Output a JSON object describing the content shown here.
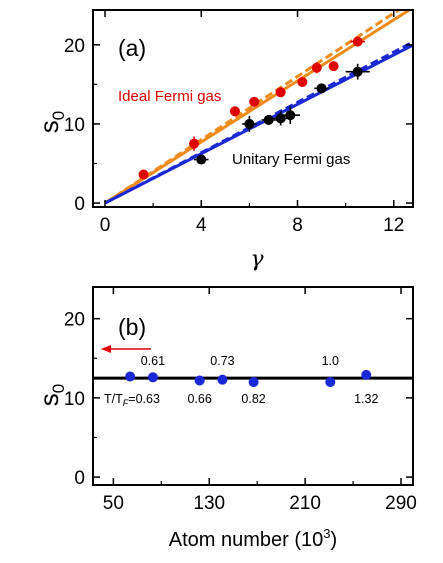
{
  "chart_data": [
    {
      "type": "scatter",
      "panel_label": "(a)",
      "xlabel": "γ",
      "ylabel": "s",
      "ylabel_sub": "0",
      "xlim": [
        -0.5,
        12.8
      ],
      "ylim": [
        -0.5,
        24.4
      ],
      "xticks": [
        0,
        4,
        8,
        12
      ],
      "yticks": [
        0,
        10,
        20
      ],
      "series": [
        {
          "name": "Ideal Fermi gas",
          "color": "#e00000",
          "marker": "filled-circle",
          "points": [
            {
              "x": 1.6,
              "y": 3.6,
              "xerr": 0.2,
              "yerr": 0.4
            },
            {
              "x": 3.7,
              "y": 7.5,
              "xerr": 0.2,
              "yerr": 0.9
            },
            {
              "x": 5.4,
              "y": 11.6,
              "xerr": 0.2,
              "yerr": 0.4
            },
            {
              "x": 6.2,
              "y": 12.8,
              "xerr": 0.2,
              "yerr": 0.4
            },
            {
              "x": 7.3,
              "y": 14.0,
              "xerr": 0.2,
              "yerr": 0.6
            },
            {
              "x": 8.2,
              "y": 15.3,
              "xerr": 0.2,
              "yerr": 0.6
            },
            {
              "x": 8.8,
              "y": 17.1,
              "xerr": 0.2,
              "yerr": 0.7
            },
            {
              "x": 9.5,
              "y": 17.3,
              "xerr": 0.2,
              "yerr": 0.6
            },
            {
              "x": 10.5,
              "y": 20.4,
              "xerr": 0.3,
              "yerr": 0.4
            }
          ]
        },
        {
          "name": "Unitary Fermi gas",
          "color": "#000000",
          "marker": "filled-circle",
          "points": [
            {
              "x": 4.0,
              "y": 5.5,
              "xerr": 0.3,
              "yerr": 0.5
            },
            {
              "x": 6.0,
              "y": 10.0,
              "xerr": 0.3,
              "yerr": 1.0
            },
            {
              "x": 6.8,
              "y": 10.5,
              "xerr": 0.3,
              "yerr": 0.5
            },
            {
              "x": 7.3,
              "y": 10.7,
              "xerr": 0.3,
              "yerr": 0.9
            },
            {
              "x": 7.7,
              "y": 11.1,
              "xerr": 0.4,
              "yerr": 1.1
            },
            {
              "x": 9.0,
              "y": 14.5,
              "xerr": 0.3,
              "yerr": 0.6
            },
            {
              "x": 10.5,
              "y": 16.6,
              "xerr": 0.5,
              "yerr": 1.0
            }
          ]
        }
      ],
      "fit_lines": [
        {
          "color": "#f08a1a",
          "style": "solid",
          "slope": 1.93
        },
        {
          "color": "#f08a1a",
          "style": "dashed",
          "slope": 2.0
        },
        {
          "color": "#1a28d6",
          "style": "solid",
          "slope": 1.56
        },
        {
          "color": "#1a28d6",
          "style": "dashed",
          "slope": 1.59
        }
      ],
      "annotations": {
        "ideal": "Ideal Fermi gas",
        "unitary": "Unitary Fermi gas"
      }
    },
    {
      "type": "scatter",
      "panel_label": "(b)",
      "xlabel": "Atom number (10",
      "xlabel_sup": "3",
      "xlabel_end": ")",
      "ylabel": "s",
      "ylabel_sub": "0",
      "xlim": [
        33,
        300
      ],
      "ylim": [
        -1,
        24
      ],
      "xticks": [
        50,
        130,
        210,
        290
      ],
      "yticks": [
        0,
        10,
        20
      ],
      "hline": {
        "y": 12.5,
        "color": "#000000"
      },
      "series": [
        {
          "name": "",
          "color": "#1a28d6",
          "marker": "filled-circle",
          "points": [
            {
              "x": 64,
              "y": 12.7,
              "yerr": 0.4
            },
            {
              "x": 83,
              "y": 12.6,
              "yerr": 0.6
            },
            {
              "x": 122,
              "y": 12.2,
              "yerr": 0.4
            },
            {
              "x": 141,
              "y": 12.3,
              "yerr": 0.4
            },
            {
              "x": 167,
              "y": 12.0,
              "yerr": 0.5
            },
            {
              "x": 231,
              "y": 12.0,
              "yerr": 0.4
            },
            {
              "x": 261,
              "y": 12.9,
              "yerr": 0.5
            }
          ]
        }
      ],
      "temperature_labels": [
        {
          "x": 64,
          "text": "0.63",
          "prefix": "T/T",
          "prefix_sub": "F",
          "prefix_eq": "=",
          "pos": "below"
        },
        {
          "x": 83,
          "text": "0.61",
          "pos": "above"
        },
        {
          "x": 122,
          "text": "0.66",
          "pos": "below"
        },
        {
          "x": 141,
          "text": "0.73",
          "pos": "above"
        },
        {
          "x": 167,
          "text": "0.82",
          "pos": "below"
        },
        {
          "x": 231,
          "text": "1.0",
          "pos": "above"
        },
        {
          "x": 261,
          "text": "1.32",
          "pos": "below"
        }
      ],
      "arrow": {
        "color": "#e00000",
        "direction": "left"
      }
    }
  ]
}
